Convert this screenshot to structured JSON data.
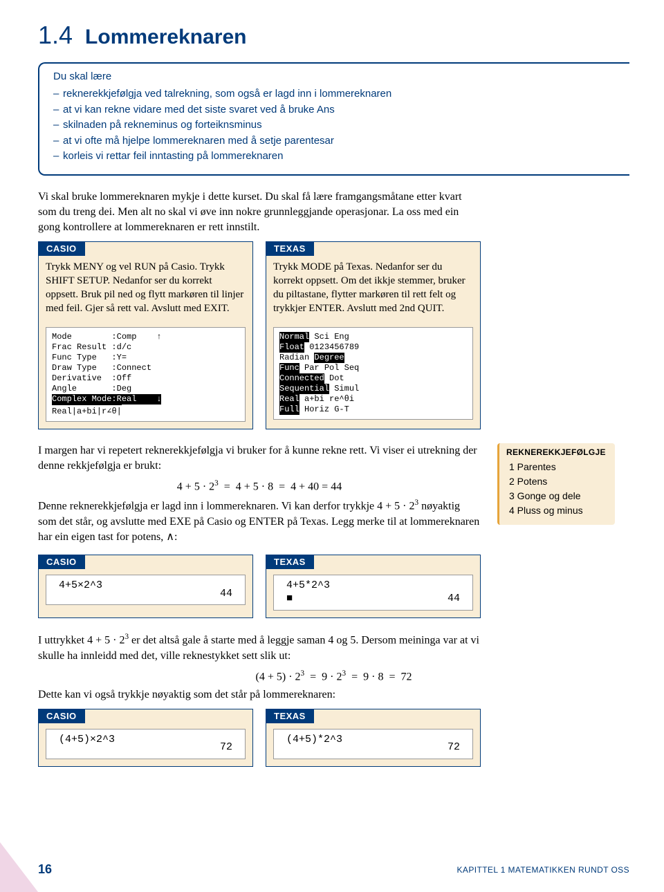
{
  "colors": {
    "accent": "#003a7a",
    "boxBg": "#f9edd6",
    "sideBorder": "#e6a43a",
    "triangle": "#f0d6e6"
  },
  "heading": {
    "num": "1.4",
    "title": "Lommereknaren"
  },
  "intro": {
    "lead": "Du skal lære",
    "items": [
      "reknerekkjefølgja ved talrekning, som også er lagd inn i lommereknaren",
      "at vi kan rekne vidare med det siste svaret ved å bruke Ans",
      "skilnaden på rekneminus og forteiknsminus",
      "at vi ofte må hjelpe lommereknaren med å setje parentesar",
      "korleis vi rettar feil inntasting på lommereknaren"
    ]
  },
  "para1": "Vi skal bruke lommereknaren mykje i dette kurset. Du skal få lære framgangsmåtane etter kvart som du treng dei. Men alt no skal vi øve inn nokre grunnleggjande operasjonar. La oss med ein gong kontrollere at lommereknaren er rett innstilt.",
  "casio1": {
    "tab": "CASIO",
    "body": "Trykk MENY og vel RUN på Casio. Trykk SHIFT SETUP. Nedanfor ser du korrekt oppsett. Bruk pil ned og flytt markøren til linjer med feil. Gjer så rett val. Avslutt med EXIT.",
    "screen": [
      "Mode        :Comp    ↑",
      "Frac Result :d/c",
      "Func Type   :Y=",
      "Draw Type   :Connect",
      "Derivative  :Off",
      "Angle       :Deg"
    ],
    "hl1": "Complex Mode:Real    ↓",
    "tail": "Real|a+bi|r∠θ|"
  },
  "texas1": {
    "tab": "TEXAS",
    "body": "Trykk MODE på Texas. Nedanfor ser du korrekt oppsett. Om det ikkje stemmer, bruker du piltastane, flytter markøren til rett felt og trykkjer ENTER. Avslutt med 2nd QUIT.",
    "lines": [
      {
        "h": "Normal",
        "t": " Sci Eng"
      },
      {
        "h": "Float",
        "t": " 0123456789"
      },
      {
        "h": "",
        "t": "Radian ",
        "h2": "Degree"
      },
      {
        "h": "Func",
        "t": " Par Pol Seq"
      },
      {
        "h": "Connected",
        "t": " Dot"
      },
      {
        "h": "Sequential",
        "t": " Simul"
      },
      {
        "h": "Real",
        "t": " a+bi re^θi"
      },
      {
        "h": "Full",
        "t": " Horiz G-T"
      }
    ]
  },
  "para2a": "I margen har vi repetert reknerekkjefølgja vi bruker for å kunne rekne rett. Vi viser ei utrekning der denne rekkjefølgja er brukt:",
  "eq1": "4 + 5 · 2³  =  4 + 5 · 8  =  4 + 40 = 44",
  "para2b": "Denne reknerekkjefølgja er lagd inn i lommereknaren. Vi kan derfor trykkje 4 + 5 · 2³ nøyaktig som det står, og avslutte med EXE på Casio og ENTER på Texas. Legg merke til at lommereknaren har ein eigen tast for potens, ∧:",
  "side": {
    "title": "REKNEREKKJEFØLGJE",
    "items": [
      "1 Parentes",
      "2 Potens",
      "3 Gonge og dele",
      "4 Pluss og minus"
    ]
  },
  "calc2": {
    "casio": {
      "tab": "CASIO",
      "expr": "4+5×2^3",
      "res": "44"
    },
    "texas": {
      "tab": "TEXAS",
      "expr": "4+5*2^3",
      "res": "44",
      "cursor": "■"
    }
  },
  "para3a": "I uttrykket 4 + 5 · 2³ er det altså gale å starte med å leggje saman 4 og 5. Dersom meininga var at vi skulle ha innleidd med det, ville reknestykket sett slik ut:",
  "eq2": "(4 + 5) · 2³  =  9 · 2³  =  9 · 8  =  72",
  "para3b": "Dette kan vi også trykkje nøyaktig som det står på lommereknaren:",
  "calc3": {
    "casio": {
      "tab": "CASIO",
      "expr": "(4+5)×2^3",
      "res": "72"
    },
    "texas": {
      "tab": "TEXAS",
      "expr": "(4+5)*2^3",
      "res": "72"
    }
  },
  "footer": {
    "page": "16",
    "chapter": "KAPITTEL 1   MATEMATIKKEN RUNDT OSS"
  }
}
